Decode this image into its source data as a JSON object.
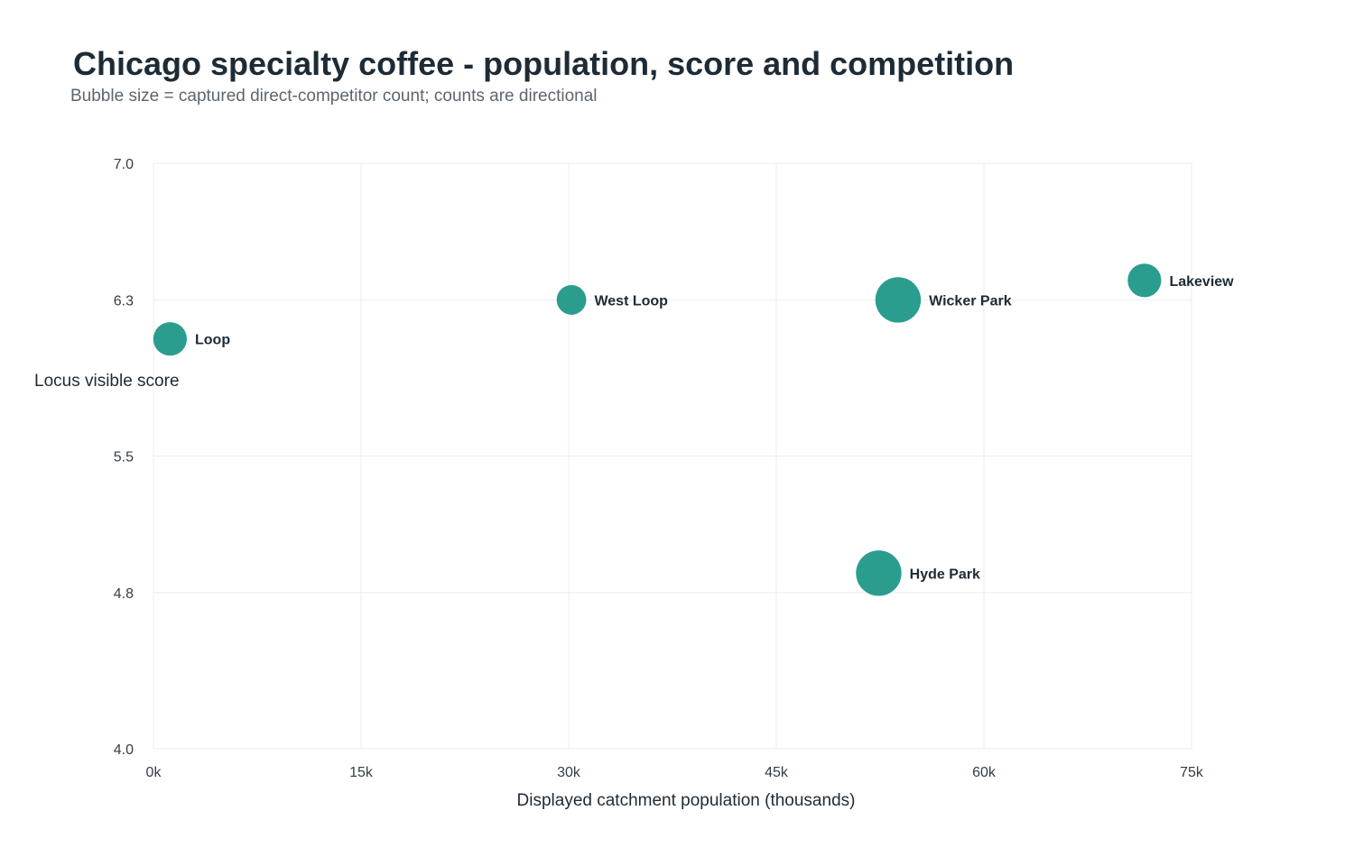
{
  "chart_data": {
    "type": "scatter",
    "title": "Chicago specialty coffee - population, score and competition",
    "subtitle": "Bubble size = captured direct-competitor count; counts are directional",
    "xlabel": "Displayed catchment population (thousands)",
    "ylabel": "Locus visible score",
    "xlim": [
      0,
      75
    ],
    "ylim": [
      4.0,
      7.0
    ],
    "x_ticks": [
      0,
      15,
      30,
      45,
      60,
      75
    ],
    "x_tick_labels": [
      "0k",
      "15k",
      "30k",
      "45k",
      "60k",
      "75k"
    ],
    "y_ticks": [
      4.0,
      4.8,
      5.5,
      6.3,
      7.0
    ],
    "y_tick_labels": [
      "4.0",
      "4.8",
      "5.5",
      "6.3",
      "7.0"
    ],
    "grid": true,
    "bubble_color": "#2a9d8f",
    "points": [
      {
        "label": "Loop",
        "x": 1.2,
        "y": 6.1,
        "size": 3
      },
      {
        "label": "West Loop",
        "x": 30.2,
        "y": 6.3,
        "size": 2
      },
      {
        "label": "Wicker Park",
        "x": 53.8,
        "y": 6.3,
        "size": 6
      },
      {
        "label": "Lakeview",
        "x": 71.6,
        "y": 6.4,
        "size": 3
      },
      {
        "label": "Hyde Park",
        "x": 52.4,
        "y": 4.9,
        "size": 6
      }
    ]
  }
}
